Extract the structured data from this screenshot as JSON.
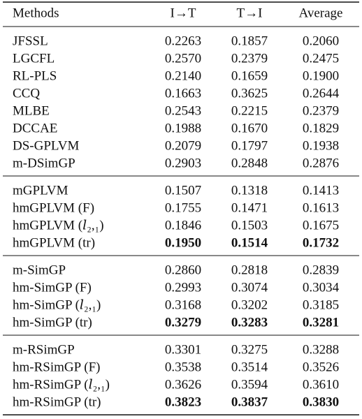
{
  "table": {
    "header": [
      "Methods",
      "I→T",
      "T→I",
      "Average"
    ],
    "groups": [
      {
        "rows": [
          {
            "method": "JFSSL",
            "values": [
              "0.2263",
              "0.1857",
              "0.2060"
            ]
          },
          {
            "method": "LGCFL",
            "values": [
              "0.2570",
              "0.2379",
              "0.2475"
            ]
          },
          {
            "method": "RL-PLS",
            "values": [
              "0.2140",
              "0.1659",
              "0.1900"
            ]
          },
          {
            "method": "CCQ",
            "values": [
              "0.1663",
              "0.3625",
              "0.2644"
            ]
          },
          {
            "method": "MLBE",
            "values": [
              "0.2543",
              "0.2215",
              "0.2379"
            ]
          },
          {
            "method": "DCCAE",
            "values": [
              "0.1988",
              "0.1670",
              "0.1829"
            ]
          },
          {
            "method": "DS-GPLVM",
            "values": [
              "0.2079",
              "0.1797",
              "0.1938"
            ]
          },
          {
            "method": "m-DSimGP",
            "values": [
              "0.2903",
              "0.2848",
              "0.2876"
            ]
          }
        ]
      },
      {
        "rows": [
          {
            "method": "mGPLVM",
            "values": [
              "0.1507",
              "0.1318",
              "0.1413"
            ]
          },
          {
            "method": "hmGPLVM (F)",
            "values": [
              "0.1755",
              "0.1471",
              "0.1613"
            ]
          },
          {
            "method": "hmGPLVM (𝑙₂,₁)",
            "values": [
              "0.1846",
              "0.1503",
              "0.1675"
            ]
          },
          {
            "method": "hmGPLVM (tr)",
            "values": [
              "0.1950",
              "0.1514",
              "0.1732"
            ],
            "bold_values": true
          }
        ]
      },
      {
        "rows": [
          {
            "method": "m-SimGP",
            "values": [
              "0.2860",
              "0.2818",
              "0.2839"
            ]
          },
          {
            "method": "hm-SimGP (F)",
            "values": [
              "0.2993",
              "0.3074",
              "0.3034"
            ]
          },
          {
            "method": "hm-SimGP (𝑙₂,₁)",
            "values": [
              "0.3168",
              "0.3202",
              "0.3185"
            ]
          },
          {
            "method": "hm-SimGP (tr)",
            "values": [
              "0.3279",
              "0.3283",
              "0.3281"
            ],
            "bold_values": true
          }
        ]
      },
      {
        "rows": [
          {
            "method": "m-RSimGP",
            "values": [
              "0.3301",
              "0.3275",
              "0.3288"
            ]
          },
          {
            "method": "hm-RSimGP (F)",
            "values": [
              "0.3538",
              "0.3514",
              "0.3526"
            ]
          },
          {
            "method": "hm-RSimGP (𝑙₂,₁)",
            "values": [
              "0.3626",
              "0.3594",
              "0.3610"
            ]
          },
          {
            "method": "hm-RSimGP (tr)",
            "values": [
              "0.3823",
              "0.3837",
              "0.3830"
            ],
            "bold_values": true
          }
        ]
      }
    ]
  }
}
